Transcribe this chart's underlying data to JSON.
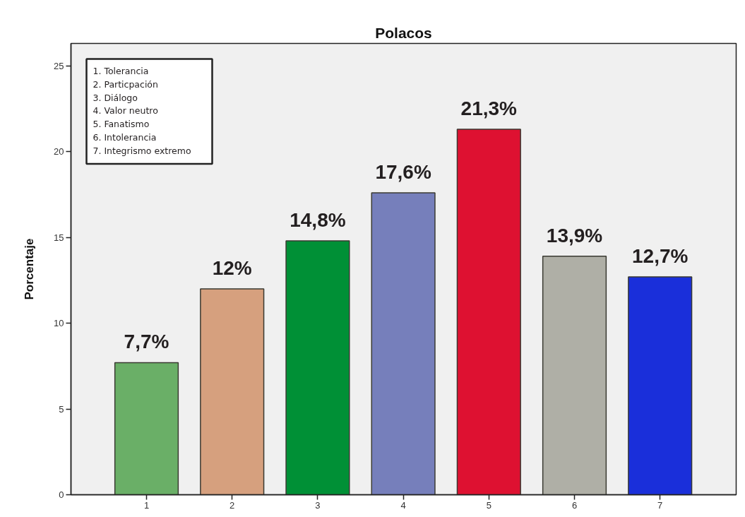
{
  "chart_data": {
    "type": "bar",
    "title": "Polacos",
    "ylabel": "Porcentaje",
    "categories": [
      "1",
      "2",
      "3",
      "4",
      "5",
      "6",
      "7"
    ],
    "values": [
      7.7,
      12,
      14.8,
      17.6,
      21.3,
      13.9,
      12.7
    ],
    "colors": [
      "#6aaf67",
      "#d6a07e",
      "#009036",
      "#767fbb",
      "#de1131",
      "#afafa6",
      "#1a2fda"
    ],
    "value_labels": [
      "7,7%",
      "12%",
      "14,8%",
      "17,6%",
      "21,3%",
      "13,9%",
      "12,7%"
    ],
    "ylim": [
      0,
      26.3
    ],
    "yticks": [
      0,
      5,
      10,
      15,
      20,
      25
    ],
    "annotations": [
      "1. Tolerancia",
      "2. Particpación",
      "3. Diálogo",
      "4. Valor neutro",
      "5. Fanatismo",
      "6. Intolerancia",
      "7. Integrismo extremo"
    ]
  }
}
